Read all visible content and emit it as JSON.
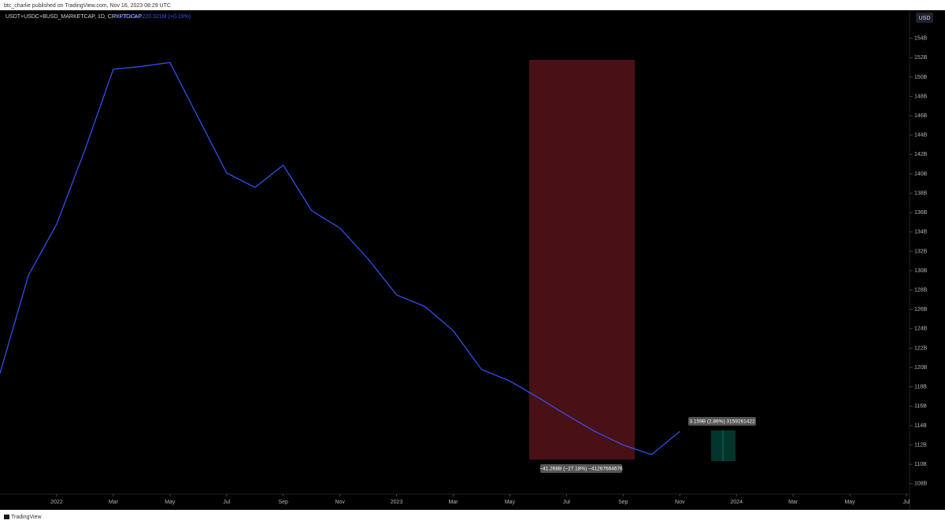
{
  "chart_data": {
    "type": "line",
    "publisher": "btc_charlie published on TradingView.com, Nov 16, 2023 08:29 UTC",
    "title": "USDT+USDC+BUSD_MARKETCAP, 1D, CRYPTOCAP",
    "legend_value": "113.421B +220.321M (+0.19%)",
    "currency": "USD",
    "brand": "TradingView",
    "annotations": [
      "−41.268B (−27.18%) −41267664676",
      "3.159B (2.86%) 3159261422"
    ],
    "x": [
      "2021-11",
      "2021-12",
      "2022-01",
      "2022-02",
      "2022-03",
      "2022-04",
      "2022-05",
      "2022-06",
      "2022-07",
      "2022-08",
      "2022-09",
      "2022-10",
      "2022-11",
      "2022-12",
      "2023-01",
      "2023-02",
      "2023-03",
      "2023-04",
      "2023-05",
      "2023-06",
      "2023-07",
      "2023-08",
      "2023-09",
      "2023-10",
      "2023-11"
    ],
    "series": [
      {
        "name": "USDT+USDC+BUSD_MARKETCAP",
        "color": "#3355ff",
        "values": [
          119.4,
          129.5,
          134.8,
          142.5,
          150.8,
          151.1,
          151.5,
          145.8,
          140.1,
          138.6,
          140.9,
          136.2,
          134.4,
          131.2,
          127.5,
          126.3,
          123.8,
          119.8,
          118.6,
          116.9,
          115.1,
          113.4,
          112.0,
          111.0,
          113.4
        ]
      }
    ],
    "xlim": [
      "2021-11",
      "2024-07"
    ],
    "xticks": [
      {
        "value": "2022-01",
        "label": "2022"
      },
      {
        "value": "2022-03",
        "label": "Mar"
      },
      {
        "value": "2022-05",
        "label": "May"
      },
      {
        "value": "2022-07",
        "label": "Jul"
      },
      {
        "value": "2022-09",
        "label": "Sep"
      },
      {
        "value": "2022-11",
        "label": "Nov"
      },
      {
        "value": "2023-01",
        "label": "2023"
      },
      {
        "value": "2023-03",
        "label": "Mar"
      },
      {
        "value": "2023-05",
        "label": "May"
      },
      {
        "value": "2023-07",
        "label": "Jul"
      },
      {
        "value": "2023-09",
        "label": "Sep"
      },
      {
        "value": "2023-11",
        "label": "Nov"
      },
      {
        "value": "2024-01",
        "label": "2024"
      },
      {
        "value": "2024-03",
        "label": "Mar"
      },
      {
        "value": "2024-05",
        "label": "May"
      },
      {
        "value": "2024-07",
        "label": "Jul"
      }
    ],
    "ylim": [
      105.3,
      156.9
    ],
    "yticks": [
      {
        "value": 108,
        "label": "108B"
      },
      {
        "value": 110,
        "label": "110B"
      },
      {
        "value": 112,
        "label": "112B"
      },
      {
        "value": 114,
        "label": "114B"
      },
      {
        "value": 116,
        "label": "116B"
      },
      {
        "value": 118,
        "label": "118B"
      },
      {
        "value": 120,
        "label": "120B"
      },
      {
        "value": 122,
        "label": "122B"
      },
      {
        "value": 124,
        "label": "124B"
      },
      {
        "value": 126,
        "label": "126B"
      },
      {
        "value": 128,
        "label": "128B"
      },
      {
        "value": 130,
        "label": "130B"
      },
      {
        "value": 132,
        "label": "132B"
      },
      {
        "value": 134,
        "label": "134B"
      },
      {
        "value": 136,
        "label": "136B"
      },
      {
        "value": 138,
        "label": "138B"
      },
      {
        "value": 140,
        "label": "140B"
      },
      {
        "value": 142,
        "label": "142B"
      },
      {
        "value": 144,
        "label": "144B"
      },
      {
        "value": 146,
        "label": "146B"
      },
      {
        "value": 148,
        "label": "148B"
      },
      {
        "value": 150,
        "label": "150B"
      },
      {
        "value": 152,
        "label": "152B"
      },
      {
        "value": 154,
        "label": "154B"
      }
    ],
    "grid": false
  }
}
